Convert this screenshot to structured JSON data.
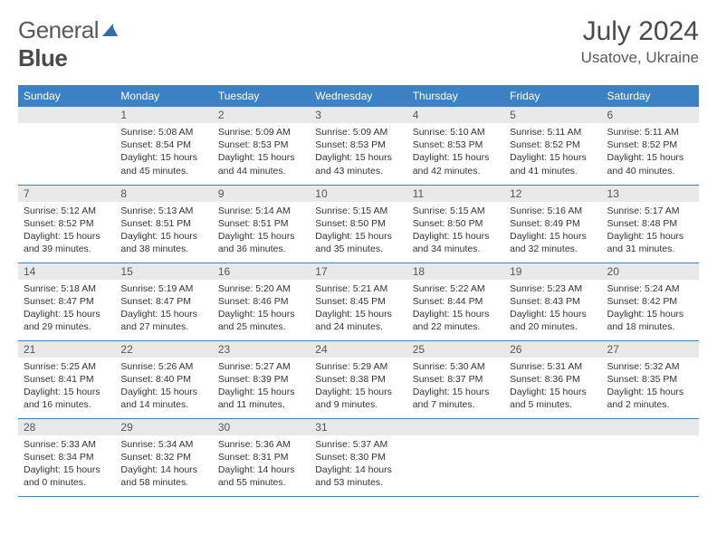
{
  "logo": {
    "word1": "General",
    "word2": "Blue"
  },
  "title": "July 2024",
  "location": "Usatove, Ukraine",
  "colors": {
    "header_bg": "#3b82c4",
    "header_fg": "#ffffff",
    "daynum_bg": "#e8e9ea",
    "row_border": "#3b82c4",
    "text": "#333333",
    "logo_gray": "#5a5a5a"
  },
  "dayNames": [
    "Sunday",
    "Monday",
    "Tuesday",
    "Wednesday",
    "Thursday",
    "Friday",
    "Saturday"
  ],
  "weeks": [
    [
      {
        "n": "",
        "lines": []
      },
      {
        "n": "1",
        "lines": [
          "Sunrise: 5:08 AM",
          "Sunset: 8:54 PM",
          "Daylight: 15 hours and 45 minutes."
        ]
      },
      {
        "n": "2",
        "lines": [
          "Sunrise: 5:09 AM",
          "Sunset: 8:53 PM",
          "Daylight: 15 hours and 44 minutes."
        ]
      },
      {
        "n": "3",
        "lines": [
          "Sunrise: 5:09 AM",
          "Sunset: 8:53 PM",
          "Daylight: 15 hours and 43 minutes."
        ]
      },
      {
        "n": "4",
        "lines": [
          "Sunrise: 5:10 AM",
          "Sunset: 8:53 PM",
          "Daylight: 15 hours and 42 minutes."
        ]
      },
      {
        "n": "5",
        "lines": [
          "Sunrise: 5:11 AM",
          "Sunset: 8:52 PM",
          "Daylight: 15 hours and 41 minutes."
        ]
      },
      {
        "n": "6",
        "lines": [
          "Sunrise: 5:11 AM",
          "Sunset: 8:52 PM",
          "Daylight: 15 hours and 40 minutes."
        ]
      }
    ],
    [
      {
        "n": "7",
        "lines": [
          "Sunrise: 5:12 AM",
          "Sunset: 8:52 PM",
          "Daylight: 15 hours and 39 minutes."
        ]
      },
      {
        "n": "8",
        "lines": [
          "Sunrise: 5:13 AM",
          "Sunset: 8:51 PM",
          "Daylight: 15 hours and 38 minutes."
        ]
      },
      {
        "n": "9",
        "lines": [
          "Sunrise: 5:14 AM",
          "Sunset: 8:51 PM",
          "Daylight: 15 hours and 36 minutes."
        ]
      },
      {
        "n": "10",
        "lines": [
          "Sunrise: 5:15 AM",
          "Sunset: 8:50 PM",
          "Daylight: 15 hours and 35 minutes."
        ]
      },
      {
        "n": "11",
        "lines": [
          "Sunrise: 5:15 AM",
          "Sunset: 8:50 PM",
          "Daylight: 15 hours and 34 minutes."
        ]
      },
      {
        "n": "12",
        "lines": [
          "Sunrise: 5:16 AM",
          "Sunset: 8:49 PM",
          "Daylight: 15 hours and 32 minutes."
        ]
      },
      {
        "n": "13",
        "lines": [
          "Sunrise: 5:17 AM",
          "Sunset: 8:48 PM",
          "Daylight: 15 hours and 31 minutes."
        ]
      }
    ],
    [
      {
        "n": "14",
        "lines": [
          "Sunrise: 5:18 AM",
          "Sunset: 8:47 PM",
          "Daylight: 15 hours and 29 minutes."
        ]
      },
      {
        "n": "15",
        "lines": [
          "Sunrise: 5:19 AM",
          "Sunset: 8:47 PM",
          "Daylight: 15 hours and 27 minutes."
        ]
      },
      {
        "n": "16",
        "lines": [
          "Sunrise: 5:20 AM",
          "Sunset: 8:46 PM",
          "Daylight: 15 hours and 25 minutes."
        ]
      },
      {
        "n": "17",
        "lines": [
          "Sunrise: 5:21 AM",
          "Sunset: 8:45 PM",
          "Daylight: 15 hours and 24 minutes."
        ]
      },
      {
        "n": "18",
        "lines": [
          "Sunrise: 5:22 AM",
          "Sunset: 8:44 PM",
          "Daylight: 15 hours and 22 minutes."
        ]
      },
      {
        "n": "19",
        "lines": [
          "Sunrise: 5:23 AM",
          "Sunset: 8:43 PM",
          "Daylight: 15 hours and 20 minutes."
        ]
      },
      {
        "n": "20",
        "lines": [
          "Sunrise: 5:24 AM",
          "Sunset: 8:42 PM",
          "Daylight: 15 hours and 18 minutes."
        ]
      }
    ],
    [
      {
        "n": "21",
        "lines": [
          "Sunrise: 5:25 AM",
          "Sunset: 8:41 PM",
          "Daylight: 15 hours and 16 minutes."
        ]
      },
      {
        "n": "22",
        "lines": [
          "Sunrise: 5:26 AM",
          "Sunset: 8:40 PM",
          "Daylight: 15 hours and 14 minutes."
        ]
      },
      {
        "n": "23",
        "lines": [
          "Sunrise: 5:27 AM",
          "Sunset: 8:39 PM",
          "Daylight: 15 hours and 11 minutes."
        ]
      },
      {
        "n": "24",
        "lines": [
          "Sunrise: 5:29 AM",
          "Sunset: 8:38 PM",
          "Daylight: 15 hours and 9 minutes."
        ]
      },
      {
        "n": "25",
        "lines": [
          "Sunrise: 5:30 AM",
          "Sunset: 8:37 PM",
          "Daylight: 15 hours and 7 minutes."
        ]
      },
      {
        "n": "26",
        "lines": [
          "Sunrise: 5:31 AM",
          "Sunset: 8:36 PM",
          "Daylight: 15 hours and 5 minutes."
        ]
      },
      {
        "n": "27",
        "lines": [
          "Sunrise: 5:32 AM",
          "Sunset: 8:35 PM",
          "Daylight: 15 hours and 2 minutes."
        ]
      }
    ],
    [
      {
        "n": "28",
        "lines": [
          "Sunrise: 5:33 AM",
          "Sunset: 8:34 PM",
          "Daylight: 15 hours and 0 minutes."
        ]
      },
      {
        "n": "29",
        "lines": [
          "Sunrise: 5:34 AM",
          "Sunset: 8:32 PM",
          "Daylight: 14 hours and 58 minutes."
        ]
      },
      {
        "n": "30",
        "lines": [
          "Sunrise: 5:36 AM",
          "Sunset: 8:31 PM",
          "Daylight: 14 hours and 55 minutes."
        ]
      },
      {
        "n": "31",
        "lines": [
          "Sunrise: 5:37 AM",
          "Sunset: 8:30 PM",
          "Daylight: 14 hours and 53 minutes."
        ]
      },
      {
        "n": "",
        "lines": []
      },
      {
        "n": "",
        "lines": []
      },
      {
        "n": "",
        "lines": []
      }
    ]
  ]
}
